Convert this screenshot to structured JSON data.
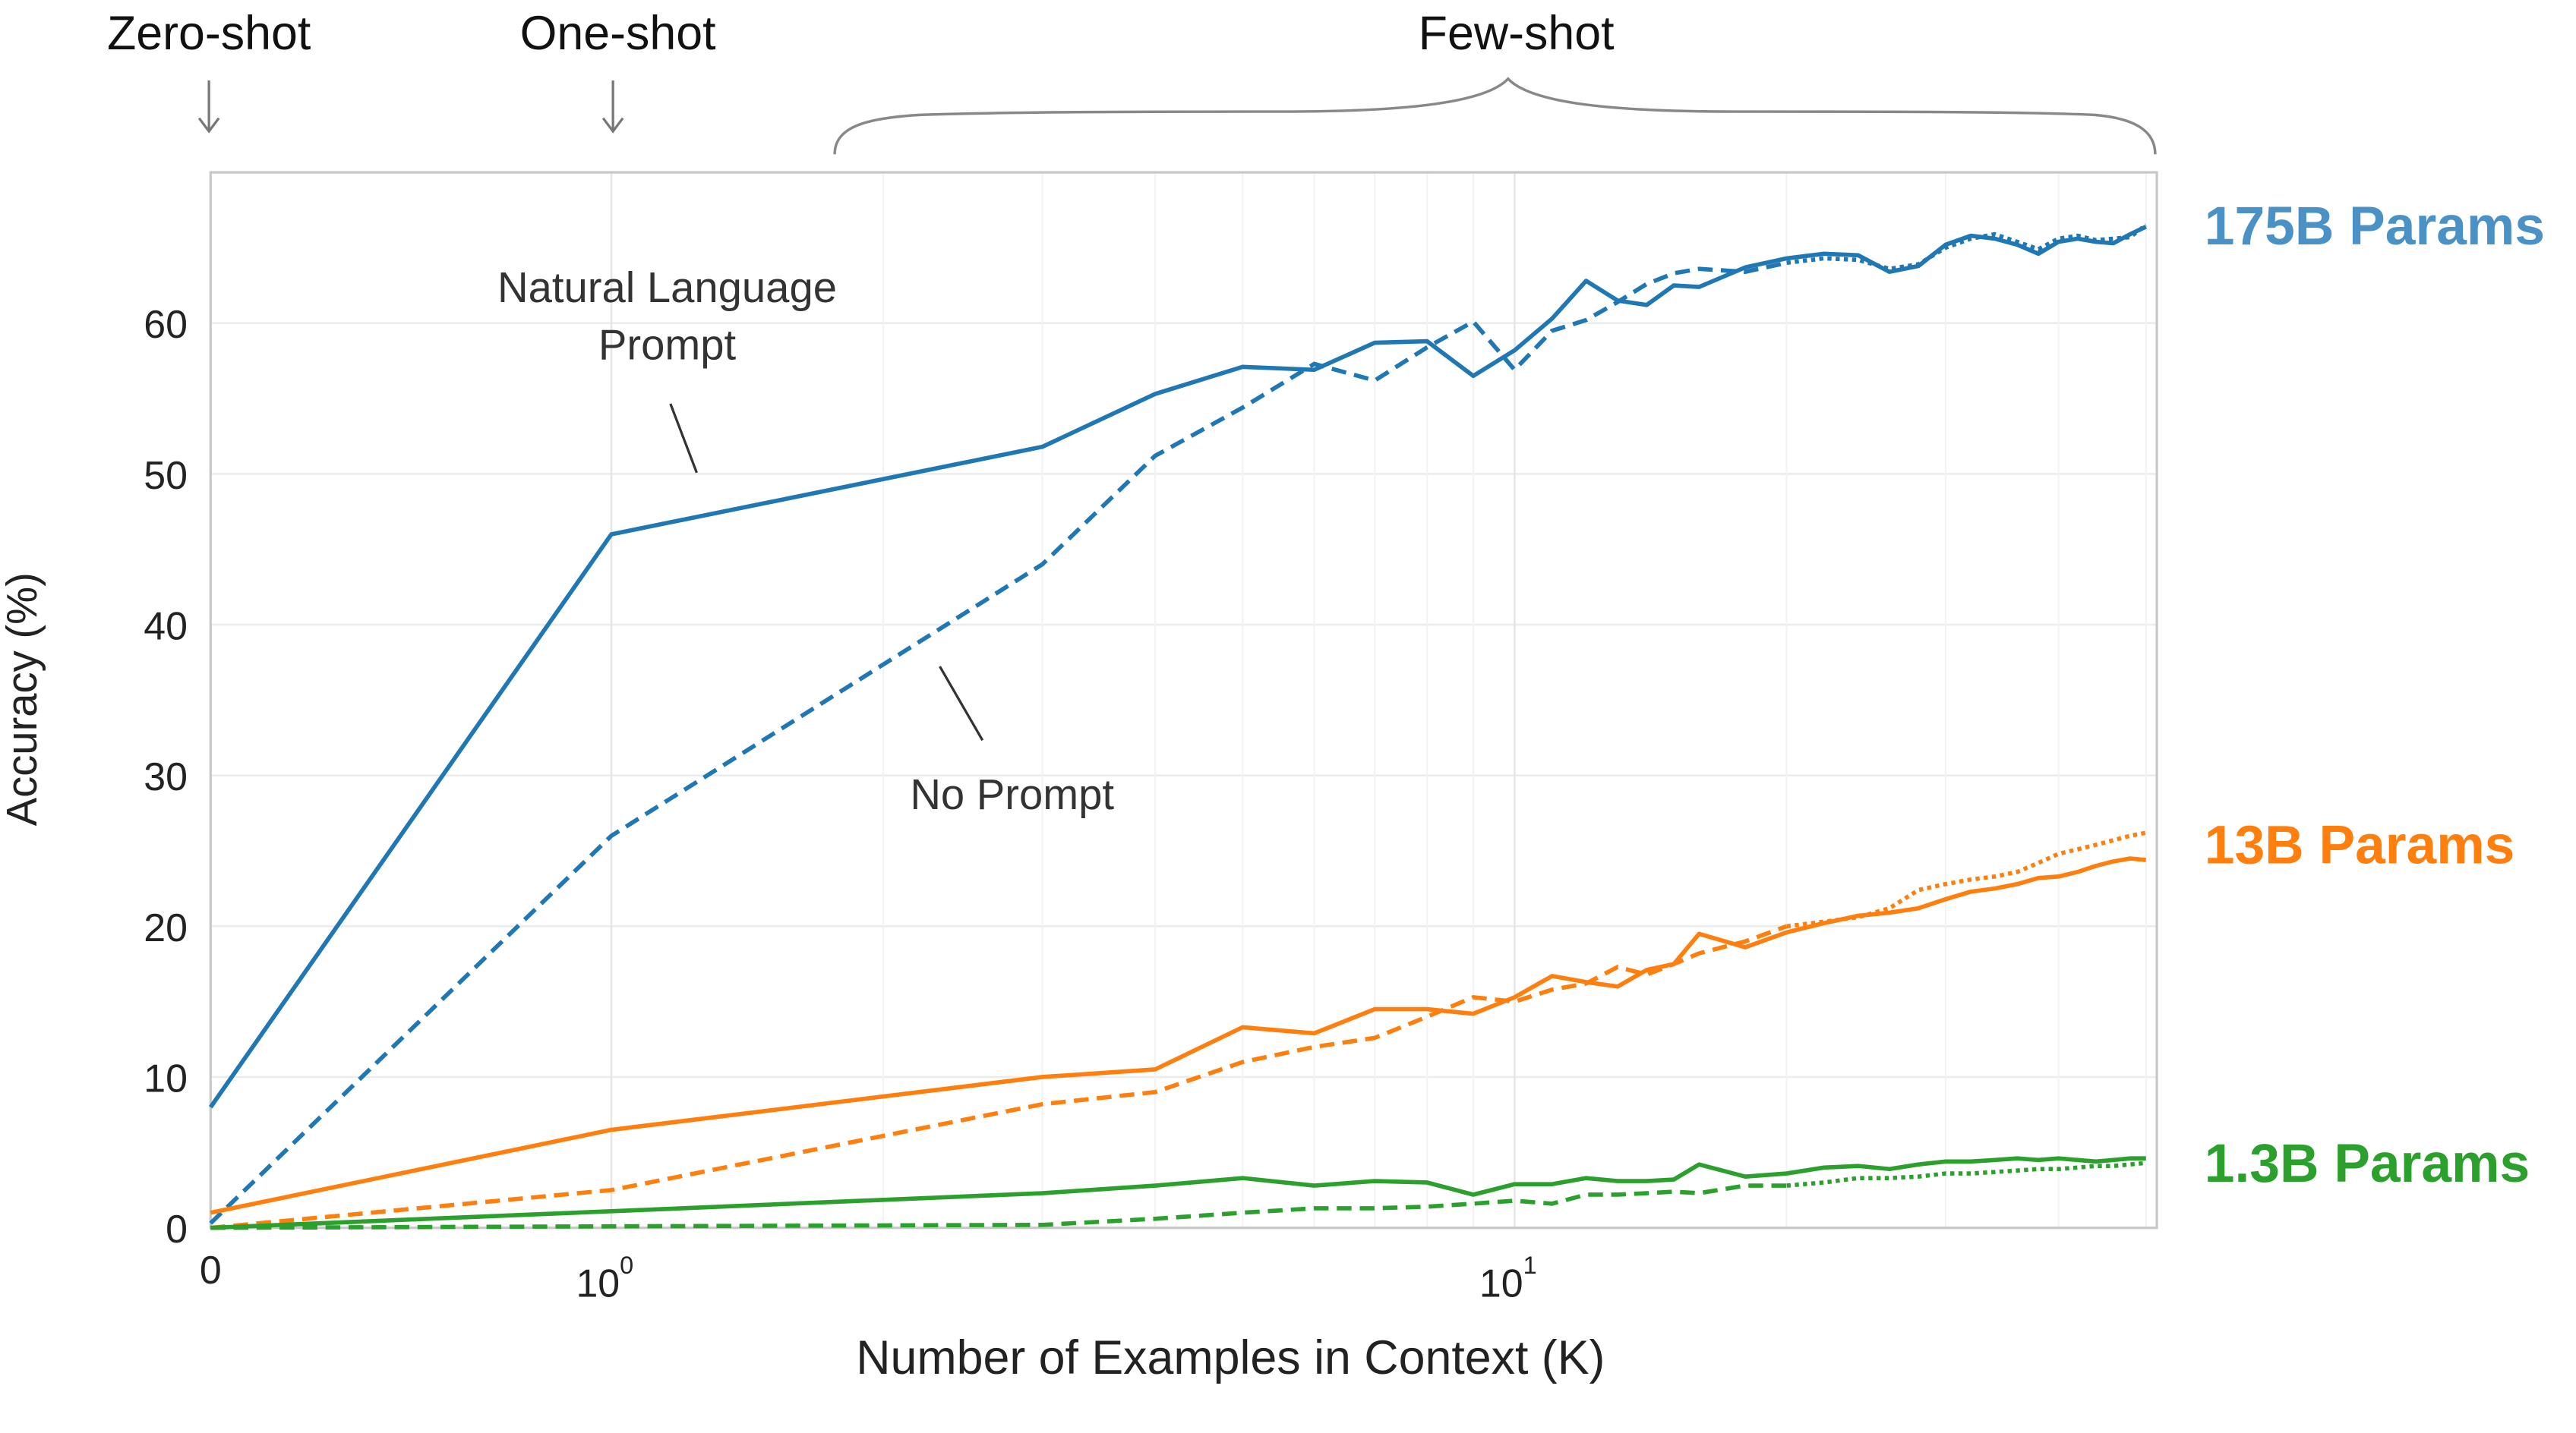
{
  "chart_data": {
    "type": "line",
    "xlabel": "Number of Examples in Context  (K)",
    "ylabel": "Accuracy (%)",
    "x_scale": "symlog",
    "xlim": [
      0,
      51
    ],
    "ylim": [
      0,
      70
    ],
    "x_ticks": [
      {
        "value": 0,
        "label": "0"
      },
      {
        "value": 1,
        "label": "10",
        "sup": "0"
      },
      {
        "value": 10,
        "label": "10",
        "sup": "1"
      }
    ],
    "y_ticks": [
      0,
      10,
      20,
      30,
      40,
      50,
      60
    ],
    "grid": true,
    "x": [
      0,
      1,
      3,
      4,
      5,
      6,
      7,
      8,
      9,
      10,
      11,
      12,
      13,
      14,
      15,
      16,
      18,
      20,
      22,
      24,
      26,
      28,
      30,
      32,
      34,
      36,
      38,
      40,
      42,
      44,
      46,
      48,
      50
    ],
    "series": [
      {
        "model": "175B Params",
        "prompt": "Natural Language Prompt",
        "style": "solid",
        "color": "#1f77b4",
        "values": [
          8,
          46,
          51.8,
          55.3,
          57.1,
          56.9,
          58.7,
          58.8,
          56.5,
          58.2,
          60.3,
          62.8,
          61.5,
          61.2,
          62.5,
          62.4,
          63.7,
          64.3,
          64.6,
          64.5,
          63.4,
          63.8,
          65.2,
          65.8,
          65.6,
          65.2,
          64.6,
          65.4,
          65.6,
          65.4,
          65.3,
          65.9,
          66.4
        ]
      },
      {
        "model": "175B Params",
        "prompt": "No Prompt",
        "style": "dashed",
        "color": "#1f77b4",
        "values": [
          0.3,
          26,
          44,
          51.2,
          54.4,
          57.3,
          56.2,
          58.4,
          60.1,
          56.9,
          59.5,
          60.2,
          61.4,
          62.6,
          63.3,
          63.6,
          63.4,
          64.0,
          64.3,
          64.2,
          63.6,
          63.9,
          65.0,
          65.6,
          65.9,
          65.4,
          64.9,
          65.6,
          65.8,
          65.5,
          65.6,
          65.7,
          66.5
        ]
      },
      {
        "model": "13B Params",
        "prompt": "Natural Language Prompt",
        "style": "solid",
        "color": "#ff7f0e",
        "values": [
          1,
          6.5,
          10,
          10.5,
          13.3,
          12.9,
          14.5,
          14.5,
          14.2,
          15.3,
          16.7,
          16.3,
          16,
          17.1,
          17.5,
          19.5,
          18.6,
          19.6,
          20.2,
          20.7,
          20.9,
          21.2,
          21.8,
          22.3,
          22.5,
          22.8,
          23.2,
          23.3,
          23.6,
          24.0,
          24.3,
          24.5,
          24.4
        ]
      },
      {
        "model": "13B Params",
        "prompt": "No Prompt",
        "style": "dashed",
        "color": "#ff7f0e",
        "values": [
          0,
          2.5,
          8.2,
          9,
          11,
          12,
          12.6,
          14,
          15.3,
          15,
          15.8,
          16.2,
          17.3,
          16.8,
          17.5,
          18.2,
          19,
          20,
          20.3,
          20.6,
          21.2,
          22.4,
          22.8,
          23.1,
          23.3,
          23.6,
          24.2,
          24.8,
          25.1,
          25.4,
          25.7,
          26.0,
          26.2
        ]
      },
      {
        "model": "1.3B Params",
        "prompt": "Natural Language Prompt",
        "style": "solid",
        "color": "#2ca02c",
        "values": [
          0,
          1.1,
          2.3,
          2.8,
          3.3,
          2.8,
          3.1,
          3,
          2.2,
          2.9,
          2.9,
          3.3,
          3.1,
          3.1,
          3.2,
          4.2,
          3.4,
          3.6,
          4.0,
          4.1,
          3.9,
          4.2,
          4.4,
          4.4,
          4.5,
          4.6,
          4.5,
          4.6,
          4.5,
          4.4,
          4.5,
          4.6,
          4.6
        ]
      },
      {
        "model": "1.3B Params",
        "prompt": "No Prompt",
        "style": "dashed",
        "color": "#2ca02c",
        "values": [
          0,
          0.1,
          0.2,
          0.6,
          1.0,
          1.3,
          1.3,
          1.4,
          1.6,
          1.8,
          1.6,
          2.2,
          2.2,
          2.3,
          2.4,
          2.3,
          2.8,
          2.8,
          3.0,
          3.3,
          3.3,
          3.4,
          3.6,
          3.6,
          3.7,
          3.8,
          3.9,
          3.9,
          4.0,
          4.1,
          4.1,
          4.2,
          4.3
        ]
      }
    ],
    "series_labels": [
      {
        "text": "175B Params",
        "color": "#4a92c6"
      },
      {
        "text": "13B Params",
        "color": "#ff7f0e"
      },
      {
        "text": "1.3B Params",
        "color": "#2ca02c"
      }
    ],
    "annotations": {
      "natural_language_line1": "Natural Language",
      "natural_language_line2": "Prompt",
      "no_prompt": "No Prompt"
    },
    "regimes": {
      "zero_shot": "Zero-shot",
      "one_shot": "One-shot",
      "few_shot": "Few-shot"
    }
  }
}
